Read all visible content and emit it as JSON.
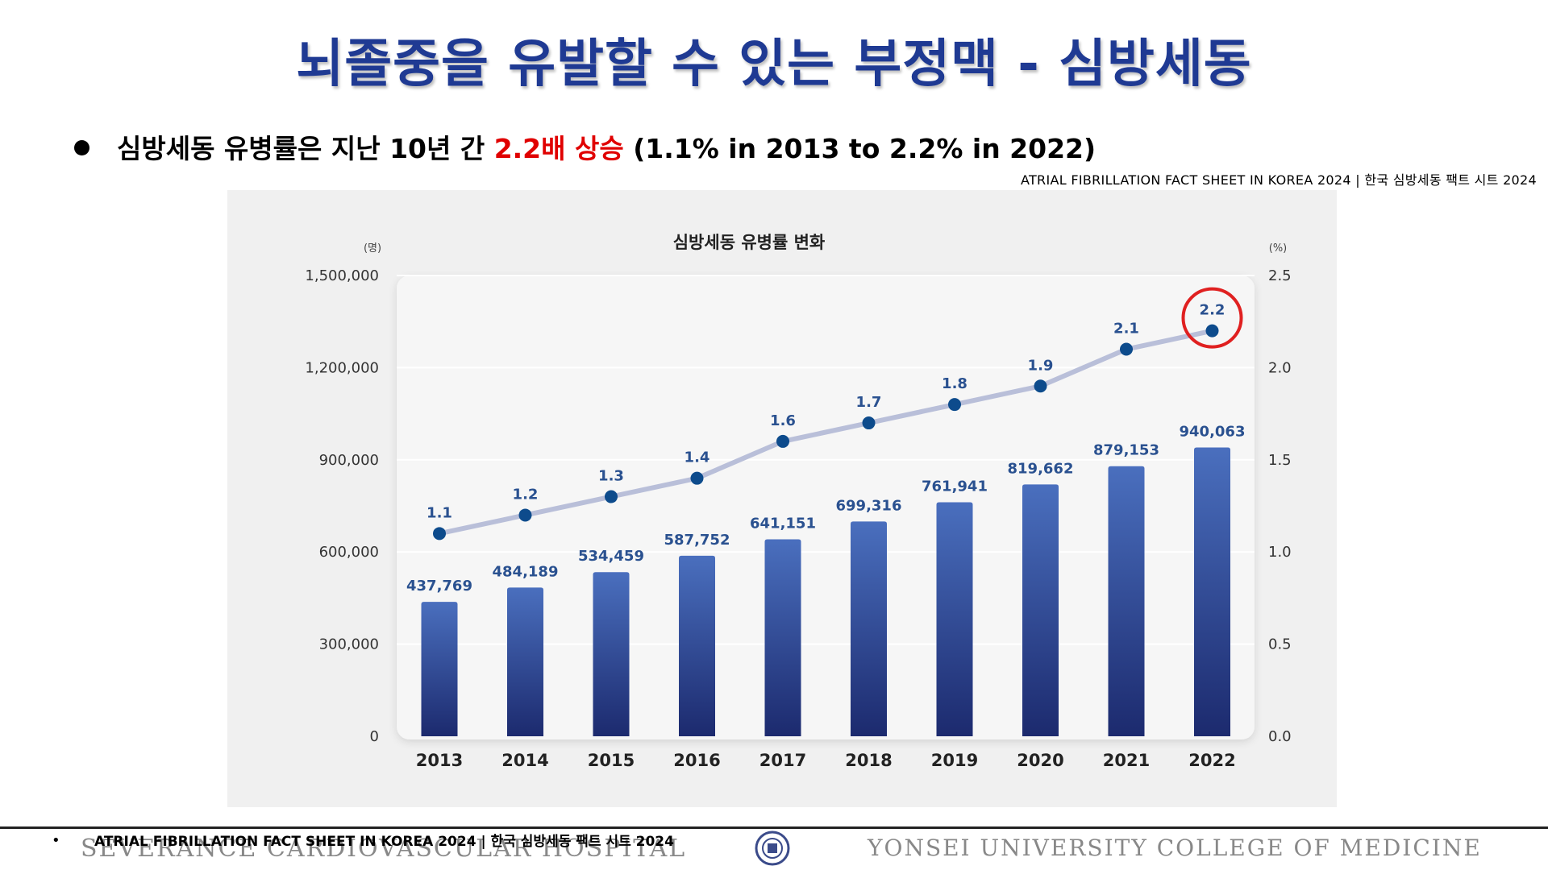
{
  "slide": {
    "title": "뇌졸중을 유발할 수 있는 부정맥 - 심방세동",
    "bullet": {
      "prefix": "심방세동 유병률은 지난 10년 간 ",
      "highlight": "2.2배 상승",
      "suffix": " (1.1% in 2013 to 2.2% in 2022)"
    },
    "source_top": "ATRIAL FIBRILLATION FACT SHEET IN KOREA 2024 | 한국 심방세동 팩트 시트 2024"
  },
  "footer": {
    "bullet": "•",
    "source": "ATRIAL FIBRILLATION FACT SHEET IN KOREA 2024 | 한국 심방세동 팩트 시트 2024",
    "left_brand": "SEVERANCE CARDIOVASCULAR HOSPITAL",
    "right_brand": "YONSEI UNIVERSITY COLLEGE OF MEDICINE"
  },
  "chart_data": {
    "type": "bar",
    "title": "심방세동 유병률 변화",
    "categories": [
      "2013",
      "2014",
      "2015",
      "2016",
      "2017",
      "2018",
      "2019",
      "2020",
      "2021",
      "2022"
    ],
    "series": [
      {
        "name": "patients",
        "type": "bar",
        "axis": "left",
        "values": [
          437769,
          484189,
          534459,
          587752,
          641151,
          699316,
          761941,
          819662,
          879153,
          940063
        ],
        "labels": [
          "437,769",
          "484,189",
          "534,459",
          "587,752",
          "641,151",
          "699,316",
          "761,941",
          "819,662",
          "879,153",
          "940,063"
        ]
      },
      {
        "name": "prevalence",
        "type": "line",
        "axis": "right",
        "values": [
          1.1,
          1.2,
          1.3,
          1.4,
          1.6,
          1.7,
          1.8,
          1.9,
          2.1,
          2.2
        ],
        "labels": [
          "1.1",
          "1.2",
          "1.3",
          "1.4",
          "1.6",
          "1.7",
          "1.8",
          "1.9",
          "2.1",
          "2.2"
        ]
      }
    ],
    "left_axis": {
      "unit": "(명)",
      "ylim": [
        0,
        1500000
      ],
      "ticks": [
        0,
        300000,
        600000,
        900000,
        1200000,
        1500000
      ],
      "tick_labels": [
        "0",
        "300,000",
        "600,000",
        "900,000",
        "1,200,000",
        "1,500,000"
      ]
    },
    "right_axis": {
      "unit": "(%)",
      "ylim": [
        0,
        2.5
      ],
      "ticks": [
        0,
        0.5,
        1.0,
        1.5,
        2.0,
        2.5
      ],
      "tick_labels": [
        "0.0",
        "0.5",
        "1.0",
        "1.5",
        "2.0",
        "2.5"
      ]
    },
    "highlight_category": "2022",
    "colors": {
      "bar_top": "#4a6fbe",
      "bar_bottom": "#1c2a6e",
      "line": "#b9bfd9",
      "marker": "#0d4b8c",
      "label": "#2a5190",
      "highlight": "#e02020"
    }
  }
}
